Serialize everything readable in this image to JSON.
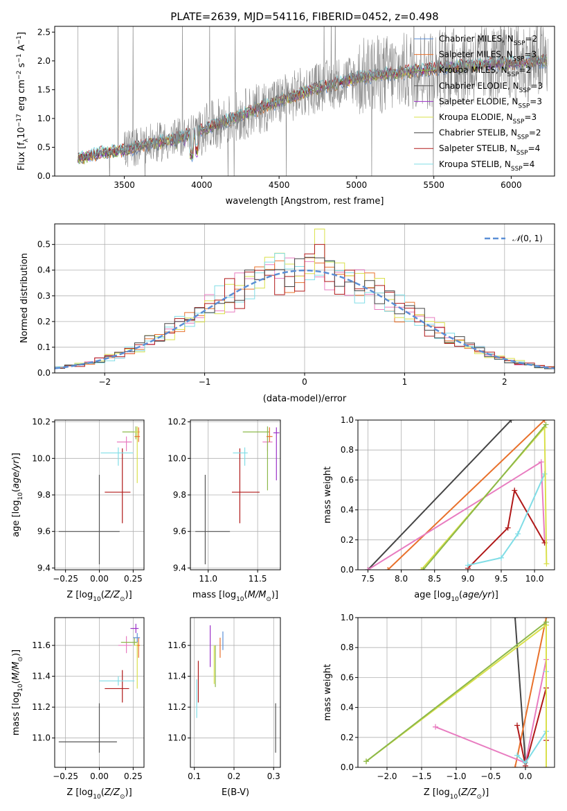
{
  "chart_data": [
    {
      "id": "spectrum",
      "type": "line",
      "title": "PLATE=2639, MJD=54116, FIBERID=0452, z=0.498",
      "xlabel": "wavelength [Angstrom, rest frame]",
      "ylabel": "Flux [f_λ 10^-17 erg cm^-2 s^-1 A^-1]",
      "xlim": [
        3050,
        6280
      ],
      "ylim": [
        0,
        2.6
      ],
      "xticks": [
        3500,
        4000,
        4500,
        5000,
        5500,
        6000
      ],
      "yticks": [
        0.0,
        0.5,
        1.0,
        1.5,
        2.0,
        2.5
      ],
      "grid": false,
      "legend_position": "top-right",
      "continuum": {
        "x": [
          3200,
          3350,
          3500,
          3650,
          3800,
          3950,
          4100,
          4250,
          4400,
          4550,
          4700,
          4850,
          5000,
          5150,
          5300,
          5450,
          5600,
          5750,
          5900,
          6050,
          6200
        ],
        "y": [
          0.3,
          0.4,
          0.45,
          0.55,
          0.62,
          0.75,
          0.9,
          1.05,
          1.2,
          1.35,
          1.5,
          1.6,
          1.7,
          1.76,
          1.8,
          1.85,
          1.9,
          1.92,
          1.95,
          1.97,
          2.0
        ]
      },
      "series": [
        {
          "name": "Chabrier MILES, N_SSP=2",
          "color": "#5b8fd6"
        },
        {
          "name": "Salpeter MILES, N_SSP=3",
          "color": "#e8702a"
        },
        {
          "name": "Kroupa MILES, N_SSP=2",
          "color": "#8cb84a"
        },
        {
          "name": "Chabrier ELODIE, N_SSP=3",
          "color": "#555555"
        },
        {
          "name": "Salpeter ELODIE, N_SSP=3",
          "color": "#9b30c8"
        },
        {
          "name": "Kroupa ELODIE, N_SSP=3",
          "color": "#d9e04a"
        },
        {
          "name": "Chabrier STELIB, N_SSP=2",
          "color": "#444444"
        },
        {
          "name": "Salpeter STELIB, N_SSP=4",
          "color": "#b01818"
        },
        {
          "name": "Kroupa STELIB, N_SSP=4",
          "color": "#80dde6"
        }
      ],
      "data_color": "#808080"
    },
    {
      "id": "residuals",
      "type": "line",
      "xlabel": "(data-model)/error",
      "ylabel": "Normed distribution",
      "xlim": [
        -2.5,
        2.5
      ],
      "ylim": [
        0,
        0.58
      ],
      "xticks": [
        -2,
        -1,
        0,
        1,
        2
      ],
      "yticks": [
        0.0,
        0.1,
        0.2,
        0.3,
        0.4,
        0.5
      ],
      "grid": true,
      "legend_position": "top-right",
      "legend": "N(0,1)",
      "curve_color": "#5b8fd6",
      "bin_width": 0.1,
      "bin_start": -2.5,
      "histogram_colors": [
        "#e87cc0",
        "#e8702a",
        "#d9e04a",
        "#80dde6",
        "#b01818",
        "#444444"
      ],
      "peak_value": 0.56
    },
    {
      "id": "age-Z",
      "type": "scatter",
      "xlabel": "Z [log10(Z/Z⊙)]",
      "ylabel": "age [log10(age/yr)]",
      "xlim": [
        -0.33,
        0.33
      ],
      "ylim": [
        9.39,
        10.21
      ],
      "xticks": [
        -0.25,
        0.0,
        0.25
      ],
      "yticks": [
        9.4,
        9.6,
        9.8,
        10.0,
        10.2
      ],
      "grid": true,
      "points": [
        {
          "x": 0.0,
          "y": 9.6,
          "xerr": [
            0.3,
            0.15
          ],
          "yerr": [
            0.18,
            0.31
          ],
          "color": "#555555"
        },
        {
          "x": 0.17,
          "y": 9.815,
          "xerr": [
            0.13,
            0.06
          ],
          "yerr": [
            0.17,
            0.24
          ],
          "color": "#b01818"
        },
        {
          "x": 0.14,
          "y": 10.03,
          "xerr": [
            0.13,
            0.11
          ],
          "yerr": [
            0.07,
            0.03
          ],
          "color": "#80dde6"
        },
        {
          "x": 0.2,
          "y": 10.09,
          "xerr": [
            0.07,
            0.04
          ],
          "yerr": [
            0.05,
            0.03
          ],
          "color": "#e87cc0"
        },
        {
          "x": 0.27,
          "y": 10.145,
          "xerr": [
            0.1,
            0.02
          ],
          "yerr": [
            0.04,
            0.03
          ],
          "color": "#8cb84a"
        },
        {
          "x": 0.28,
          "y": 10.145,
          "xerr": [
            0.02,
            0.02
          ],
          "yerr": [
            0.28,
            0.03
          ],
          "color": "#d9e04a"
        },
        {
          "x": 0.29,
          "y": 10.12,
          "xerr": [
            0.03,
            0.01
          ],
          "yerr": [
            0.03,
            0.05
          ],
          "color": "#e8702a"
        }
      ]
    },
    {
      "id": "age-mass",
      "type": "scatter",
      "xlabel": "mass [log10(M/M⊙)]",
      "ylabel": "",
      "xlim": [
        10.82,
        11.73
      ],
      "ylim": [
        9.39,
        10.21
      ],
      "xticks": [
        11.0,
        11.5
      ],
      "yticks": [
        9.4,
        9.6,
        9.8,
        10.0,
        10.2
      ],
      "grid": true,
      "points": [
        {
          "x": 10.97,
          "y": 9.6,
          "xerr": [
            0.1,
            0.25
          ],
          "yerr": [
            0.18,
            0.31
          ],
          "color": "#555555"
        },
        {
          "x": 11.32,
          "y": 9.815,
          "xerr": [
            0.08,
            0.2
          ],
          "yerr": [
            0.17,
            0.24
          ],
          "color": "#b01818"
        },
        {
          "x": 11.37,
          "y": 10.03,
          "xerr": [
            0.12,
            0.03
          ],
          "yerr": [
            0.07,
            0.03
          ],
          "color": "#80dde6"
        },
        {
          "x": 11.6,
          "y": 10.09,
          "xerr": [
            0.05,
            0.05
          ],
          "yerr": [
            0.05,
            0.03
          ],
          "color": "#e87cc0"
        },
        {
          "x": 11.6,
          "y": 10.145,
          "xerr": [
            0.25,
            0.02
          ],
          "yerr": [
            0.32,
            0.03
          ],
          "color": "#8cb84a"
        },
        {
          "x": 11.69,
          "y": 10.14,
          "xerr": [
            0.03,
            0.03
          ],
          "yerr": [
            0.26,
            0.03
          ],
          "color": "#9b30c8"
        },
        {
          "x": 11.62,
          "y": 10.12,
          "xerr": [
            0.03,
            0.03
          ],
          "yerr": [
            0.03,
            0.05
          ],
          "color": "#e8702a"
        }
      ]
    },
    {
      "id": "mw-age",
      "type": "line",
      "xlabel": "age [log10(age/yr)]",
      "ylabel": "mass weight",
      "xlim": [
        7.35,
        10.3
      ],
      "ylim": [
        0,
        1.0
      ],
      "xticks": [
        7.5,
        8.0,
        8.5,
        9.0,
        9.5,
        10.0
      ],
      "yticks": [
        0.0,
        0.2,
        0.4,
        0.6,
        0.8,
        1.0
      ],
      "grid": true,
      "series": [
        {
          "color": "#444444",
          "x": [
            7.5,
            9.65
          ],
          "y": [
            0.0,
            1.0
          ]
        },
        {
          "color": "#e8702a",
          "x": [
            7.8,
            10.15
          ],
          "y": [
            0.0,
            1.0
          ]
        },
        {
          "color": "#e87cc0",
          "x": [
            7.5,
            10.1,
            10.15
          ],
          "y": [
            0.0,
            0.72,
            0.2
          ]
        },
        {
          "color": "#b01818",
          "x": [
            9.0,
            9.6,
            9.7,
            10.15
          ],
          "y": [
            0.01,
            0.28,
            0.53,
            0.18
          ]
        },
        {
          "color": "#80dde6",
          "x": [
            9.0,
            9.5,
            9.75,
            10.15
          ],
          "y": [
            0.03,
            0.08,
            0.24,
            0.64
          ]
        },
        {
          "color": "#d9e04a",
          "x": [
            8.3,
            10.15,
            10.18
          ],
          "y": [
            0.0,
            0.95,
            0.04
          ]
        },
        {
          "color": "#8cb84a",
          "x": [
            8.33,
            10.17
          ],
          "y": [
            0.0,
            0.97
          ]
        }
      ]
    },
    {
      "id": "mass-Z",
      "type": "scatter",
      "xlabel": "Z [log10(Z/Z⊙)]",
      "ylabel": "mass [log10(M/M⊙)]",
      "xlim": [
        -0.33,
        0.33
      ],
      "ylim": [
        10.81,
        11.78
      ],
      "xticks": [
        -0.25,
        0.0,
        0.25
      ],
      "yticks": [
        11.0,
        11.2,
        11.4,
        11.6
      ],
      "grid": true,
      "points": [
        {
          "x": 0.0,
          "y": 10.975,
          "xerr": [
            0.3,
            0.13
          ],
          "yerr": [
            0.07,
            0.25
          ],
          "color": "#555555"
        },
        {
          "x": 0.17,
          "y": 11.32,
          "xerr": [
            0.13,
            0.05
          ],
          "yerr": [
            0.09,
            0.12
          ],
          "color": "#b01818"
        },
        {
          "x": 0.14,
          "y": 11.37,
          "xerr": [
            0.14,
            0.12
          ],
          "yerr": [
            0.03,
            0.03
          ],
          "color": "#80dde6"
        },
        {
          "x": 0.2,
          "y": 11.6,
          "xerr": [
            0.06,
            0.04
          ],
          "yerr": [
            0.05,
            0.06
          ],
          "color": "#e87cc0"
        },
        {
          "x": 0.26,
          "y": 11.62,
          "xerr": [
            0.1,
            0.02
          ],
          "yerr": [
            0.02,
            0.03
          ],
          "color": "#8cb84a"
        },
        {
          "x": 0.28,
          "y": 11.6,
          "xerr": [
            0.02,
            0.02
          ],
          "yerr": [
            0.28,
            0.03
          ],
          "color": "#d9e04a"
        },
        {
          "x": 0.27,
          "y": 11.71,
          "xerr": [
            0.04,
            0.02
          ],
          "yerr": [
            0.03,
            0.03
          ],
          "color": "#9b30c8"
        },
        {
          "x": 0.29,
          "y": 11.6,
          "xerr": [
            0.01,
            0.01
          ],
          "yerr": [
            0.08,
            0.05
          ],
          "color": "#e8702a"
        },
        {
          "x": 0.28,
          "y": 11.65,
          "xerr": [
            0.03,
            0.02
          ],
          "yerr": [
            0.03,
            0.03
          ],
          "color": "#5b8fd6"
        }
      ]
    },
    {
      "id": "mass-EBV",
      "type": "scatter",
      "xlabel": "E(B-V)",
      "ylabel": "",
      "xlim": [
        0.09,
        0.317
      ],
      "ylim": [
        10.81,
        11.78
      ],
      "xticks": [
        0.1,
        0.2,
        0.3
      ],
      "yticks": [
        11.0,
        11.2,
        11.4,
        11.6
      ],
      "grid": true,
      "points": [
        {
          "x": 0.305,
          "y": 10.975,
          "xerr": [
            0,
            0
          ],
          "yerr": [
            0.07,
            0.25
          ],
          "color": "#555555"
        },
        {
          "x": 0.11,
          "y": 11.32,
          "xerr": [
            0,
            0
          ],
          "yerr": [
            0.09,
            0.18
          ],
          "color": "#b01818"
        },
        {
          "x": 0.106,
          "y": 11.3,
          "xerr": [
            0,
            0
          ],
          "yerr": [
            0.17,
            0.08
          ],
          "color": "#80dde6"
        },
        {
          "x": 0.14,
          "y": 11.6,
          "xerr": [
            0,
            0
          ],
          "yerr": [
            0.14,
            0.13
          ],
          "color": "#9b30c8"
        },
        {
          "x": 0.153,
          "y": 11.48,
          "xerr": [
            0,
            0
          ],
          "yerr": [
            0.15,
            0.12
          ],
          "color": "#8cb84a"
        },
        {
          "x": 0.15,
          "y": 11.5,
          "xerr": [
            0,
            0
          ],
          "yerr": [
            0.15,
            0.1
          ],
          "color": "#d9e04a"
        },
        {
          "x": 0.165,
          "y": 11.6,
          "xerr": [
            0,
            0
          ],
          "yerr": [
            0.08,
            0.05
          ],
          "color": "#e8702a"
        },
        {
          "x": 0.172,
          "y": 11.65,
          "xerr": [
            0,
            0
          ],
          "yerr": [
            0.08,
            0.04
          ],
          "color": "#5b8fd6"
        }
      ]
    },
    {
      "id": "mw-Z",
      "type": "line",
      "xlabel": "Z [log10(Z/Z⊙)]",
      "ylabel": "mass weight",
      "xlim": [
        -2.42,
        0.42
      ],
      "ylim": [
        0,
        1.0
      ],
      "xticks": [
        -2.0,
        -1.5,
        -1.0,
        -0.5,
        0.0
      ],
      "yticks": [
        0.0,
        0.2,
        0.4,
        0.6,
        0.8,
        1.0
      ],
      "grid": true,
      "series": [
        {
          "color": "#444444",
          "x": [
            -0.15,
            0.0
          ],
          "y": [
            1.0,
            0.03
          ]
        },
        {
          "color": "#e8702a",
          "x": [
            -0.15,
            0.3
          ],
          "y": [
            0.0,
            1.0
          ]
        },
        {
          "color": "#e87cc0",
          "x": [
            -1.3,
            0.0,
            0.3
          ],
          "y": [
            0.27,
            0.03,
            0.72
          ]
        },
        {
          "color": "#b01818",
          "x": [
            -0.12,
            0.0,
            0.3,
            0.3
          ],
          "y": [
            0.28,
            0.01,
            0.53,
            0.18
          ]
        },
        {
          "color": "#80dde6",
          "x": [
            -0.12,
            0.0,
            0.3,
            0.3
          ],
          "y": [
            0.08,
            0.03,
            0.24,
            0.64
          ]
        },
        {
          "color": "#d9e04a",
          "x": [
            -2.3,
            0.3,
            0.3
          ],
          "y": [
            0.04,
            0.95,
            0.0
          ]
        },
        {
          "color": "#8cb84a",
          "x": [
            -2.3,
            0.3
          ],
          "y": [
            0.04,
            0.97
          ]
        }
      ]
    }
  ]
}
